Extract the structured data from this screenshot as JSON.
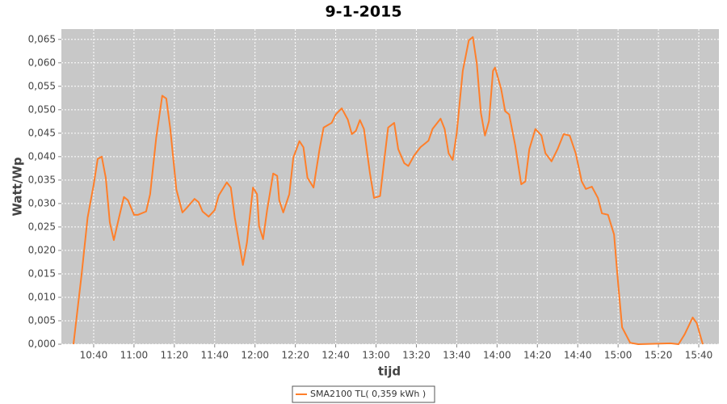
{
  "chart_data": {
    "type": "line",
    "title": "9-1-2015",
    "x_label": "tijd",
    "y_label": "Watt/Wp",
    "x": [
      "10:30",
      "10:34",
      "10:37",
      "10:40",
      "10:42",
      "10:44",
      "10:46",
      "10:48",
      "10:50",
      "10:53",
      "10:55",
      "10:57",
      "11:00",
      "11:02",
      "11:06",
      "11:08",
      "11:11",
      "11:14",
      "11:16",
      "11:18",
      "11:21",
      "11:24",
      "11:26",
      "11:30",
      "11:32",
      "11:34",
      "11:37",
      "11:40",
      "11:42",
      "11:46",
      "11:48",
      "11:50",
      "11:54",
      "11:56",
      "11:59",
      "12:01",
      "12:02",
      "12:04",
      "12:06",
      "12:09",
      "12:11",
      "12:12",
      "12:14",
      "12:17",
      "12:19",
      "12:22",
      "12:24",
      "12:26",
      "12:29",
      "12:32",
      "12:34",
      "12:38",
      "12:40",
      "12:43",
      "12:46",
      "12:48",
      "12:50",
      "12:52",
      "12:54",
      "12:57",
      "12:59",
      "13:02",
      "13:04",
      "13:06",
      "13:09",
      "13:11",
      "13:14",
      "13:16",
      "13:19",
      "13:22",
      "13:26",
      "13:28",
      "13:32",
      "13:34",
      "13:36",
      "13:38",
      "13:40",
      "13:43",
      "13:46",
      "13:48",
      "13:50",
      "13:52",
      "13:54",
      "13:56",
      "13:58",
      "13:59",
      "14:02",
      "14:04",
      "14:06",
      "14:09",
      "14:12",
      "14:14",
      "14:16",
      "14:19",
      "14:22",
      "14:24",
      "14:27",
      "14:30",
      "14:33",
      "14:36",
      "14:39",
      "14:42",
      "14:44",
      "14:47",
      "14:50",
      "14:52",
      "14:55",
      "14:58",
      "15:00",
      "15:02",
      "15:06",
      "15:10",
      "15:26",
      "15:30",
      "15:33",
      "15:37",
      "15:39",
      "15:42"
    ],
    "series": [
      {
        "name": "SMA2100 TL( 0,359 kWh )",
        "color": "#ff7f2a",
        "values": [
          0,
          0.0148,
          0.027,
          0.034,
          0.0395,
          0.04,
          0.0355,
          0.026,
          0.0222,
          0.0278,
          0.0314,
          0.0307,
          0.0276,
          0.0276,
          0.0283,
          0.032,
          0.044,
          0.053,
          0.0524,
          0.0459,
          0.033,
          0.0281,
          0.029,
          0.031,
          0.0303,
          0.0283,
          0.0272,
          0.0286,
          0.0317,
          0.0345,
          0.0334,
          0.0269,
          0.0169,
          0.0217,
          0.0334,
          0.032,
          0.0252,
          0.0224,
          0.0286,
          0.0364,
          0.0359,
          0.0307,
          0.0281,
          0.032,
          0.0398,
          0.0433,
          0.042,
          0.0355,
          0.0334,
          0.0416,
          0.0462,
          0.0472,
          0.049,
          0.0503,
          0.0479,
          0.0448,
          0.0455,
          0.0478,
          0.0459,
          0.0364,
          0.0312,
          0.0316,
          0.039,
          0.0462,
          0.0472,
          0.0416,
          0.0386,
          0.038,
          0.0403,
          0.042,
          0.0434,
          0.0459,
          0.0481,
          0.0459,
          0.0407,
          0.0393,
          0.045,
          0.0583,
          0.0648,
          0.0655,
          0.0597,
          0.0493,
          0.0445,
          0.0476,
          0.0583,
          0.059,
          0.0545,
          0.0497,
          0.049,
          0.0424,
          0.0341,
          0.0347,
          0.0416,
          0.0459,
          0.0445,
          0.0407,
          0.039,
          0.0416,
          0.0448,
          0.0445,
          0.0407,
          0.0347,
          0.0331,
          0.0336,
          0.0312,
          0.0279,
          0.0276,
          0.0234,
          0.0131,
          0.0036,
          0.0003,
          0,
          0.0002,
          0,
          0.0021,
          0.0057,
          0.0045,
          0
        ]
      }
    ],
    "xlim": [
      "10:24",
      "15:50"
    ],
    "xticks": [
      "10:40",
      "11:00",
      "11:20",
      "11:40",
      "12:00",
      "12:20",
      "12:40",
      "13:00",
      "13:20",
      "13:40",
      "14:00",
      "14:20",
      "14:40",
      "15:00",
      "15:20",
      "15:40"
    ],
    "ylim": [
      0,
      0.0672
    ],
    "yticks": [
      {
        "value": 0,
        "label": "0,000"
      },
      {
        "value": 0.005,
        "label": "0,005"
      },
      {
        "value": 0.01,
        "label": "0,010"
      },
      {
        "value": 0.015,
        "label": "0,015"
      },
      {
        "value": 0.02,
        "label": "0,020"
      },
      {
        "value": 0.025,
        "label": "0,025"
      },
      {
        "value": 0.03,
        "label": "0,030"
      },
      {
        "value": 0.035,
        "label": "0,035"
      },
      {
        "value": 0.04,
        "label": "0,040"
      },
      {
        "value": 0.045,
        "label": "0,045"
      },
      {
        "value": 0.05,
        "label": "0,050"
      },
      {
        "value": 0.055,
        "label": "0,055"
      },
      {
        "value": 0.06,
        "label": "0,060"
      },
      {
        "value": 0.065,
        "label": "0,065"
      }
    ],
    "grid": true,
    "legend": "bottom"
  }
}
